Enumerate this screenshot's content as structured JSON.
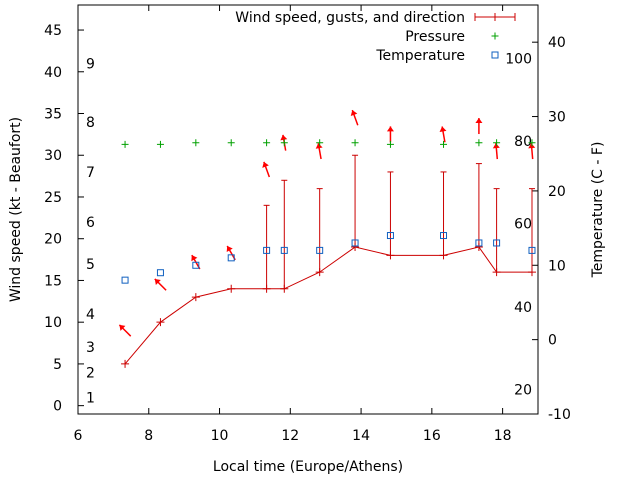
{
  "chart_data": {
    "type": "line",
    "xlabel": "Local time (Europe/Athens)",
    "ylabel_left": "Wind speed (kt - Beaufort)",
    "ylabel_right": "Temperature (C - F)",
    "xlim": [
      6,
      19
    ],
    "ylim_left": [
      -1,
      48
    ],
    "ylim_right": [
      -10,
      45
    ],
    "x_ticks": [
      "6",
      "8",
      "10",
      "12",
      "14",
      "16",
      "18"
    ],
    "y_ticks_left": [
      "0",
      "5",
      "10",
      "15",
      "20",
      "25",
      "30",
      "35",
      "40",
      "45"
    ],
    "y_ticks_right": [
      "-10",
      "0",
      "10",
      "20",
      "30",
      "40"
    ],
    "beaufort_labels": [
      {
        "label": "1",
        "knots": 1
      },
      {
        "label": "2",
        "knots": 4
      },
      {
        "label": "3",
        "knots": 7
      },
      {
        "label": "4",
        "knots": 11
      },
      {
        "label": "5",
        "knots": 17
      },
      {
        "label": "6",
        "knots": 22
      },
      {
        "label": "7",
        "knots": 28
      },
      {
        "label": "8",
        "knots": 34
      },
      {
        "label": "9",
        "knots": 41
      }
    ],
    "fahrenheit_labels": [
      {
        "label": "20",
        "celsius": -6.7
      },
      {
        "label": "40",
        "celsius": 4.4
      },
      {
        "label": "60",
        "celsius": 15.6
      },
      {
        "label": "80",
        "celsius": 26.7
      },
      {
        "label": "100",
        "celsius": 37.8
      }
    ],
    "legend": [
      "Wind speed, gusts, and direction",
      "Pressure",
      "Temperature"
    ],
    "legend_position": "top-right",
    "colors": {
      "wind": "#cc0000",
      "pressure": "#00a000",
      "temperature": "#1060c0",
      "arrow": "#ff0000"
    },
    "series": [
      {
        "name": "Wind speed, gusts, and direction",
        "x": [
          7.33,
          8.33,
          9.33,
          10.33,
          11.33,
          11.83,
          12.83,
          13.83,
          14.83,
          16.33,
          17.33,
          17.83,
          18.83
        ],
        "speed": [
          5,
          10,
          13,
          14,
          14,
          14,
          16,
          19,
          18,
          18,
          19,
          16,
          16
        ],
        "gust": [
          null,
          null,
          null,
          null,
          24,
          27,
          26,
          30,
          28,
          28,
          29,
          26,
          26
        ],
        "direction_arrow_y": [
          9,
          14.5,
          17.2,
          18.3,
          28.3,
          31.5,
          30.5,
          34.5,
          32.5,
          32.5,
          33.5,
          30.5,
          30.5
        ],
        "direction_deg": [
          315,
          315,
          330,
          330,
          340,
          350,
          350,
          340,
          0,
          350,
          0,
          355,
          355
        ]
      },
      {
        "name": "Pressure",
        "x": [
          7.33,
          8.33,
          9.33,
          10.33,
          11.33,
          11.83,
          12.83,
          13.83,
          14.83,
          16.33,
          17.33,
          17.83,
          18.83
        ],
        "values": [
          31.3,
          31.3,
          31.5,
          31.5,
          31.5,
          31.5,
          31.5,
          31.5,
          31.3,
          31.3,
          31.5,
          31.5,
          31.5
        ]
      },
      {
        "name": "Temperature",
        "x": [
          7.33,
          8.33,
          9.33,
          10.33,
          11.33,
          11.83,
          12.83,
          13.83,
          14.83,
          16.33,
          17.33,
          17.83,
          18.83
        ],
        "values": [
          8,
          9,
          10,
          11,
          12,
          12,
          12,
          13,
          14,
          14,
          13,
          13,
          12
        ]
      }
    ]
  }
}
